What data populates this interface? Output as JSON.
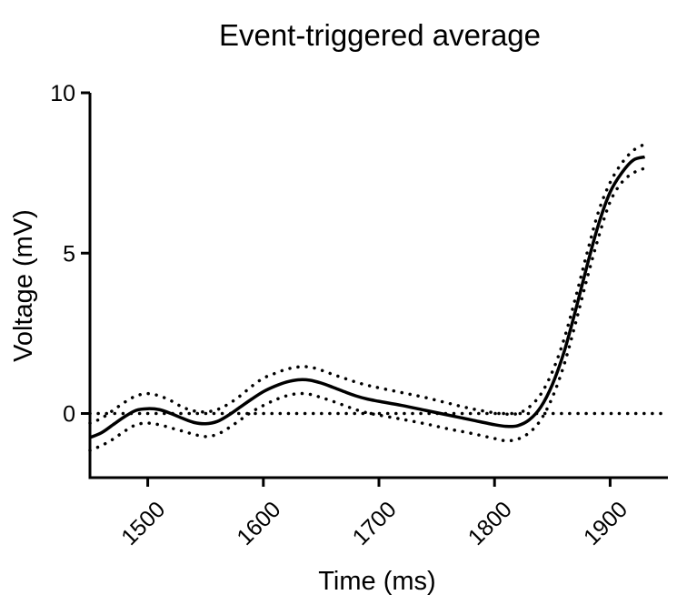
{
  "chart_data": {
    "type": "line",
    "title": "Event-triggered average",
    "xlabel": "Time (ms)",
    "ylabel": "Voltage (mV)",
    "xlim": [
      1450,
      1950
    ],
    "ylim": [
      -2,
      10
    ],
    "xticks": [
      1500,
      1600,
      1700,
      1800,
      1900
    ],
    "yticks": [
      0,
      5,
      10
    ],
    "xtick_labels": [
      "1500",
      "1600",
      "1700",
      "1800",
      "1900"
    ],
    "ytick_labels": [
      "0",
      "5",
      "10"
    ],
    "grid": false,
    "legend": "none",
    "series": [
      {
        "style": "solid",
        "x": [
          1450,
          1460,
          1470,
          1480,
          1490,
          1500,
          1510,
          1520,
          1530,
          1540,
          1550,
          1560,
          1570,
          1580,
          1590,
          1600,
          1610,
          1620,
          1630,
          1640,
          1650,
          1660,
          1670,
          1680,
          1690,
          1700,
          1720,
          1740,
          1760,
          1780,
          1800,
          1810,
          1820,
          1830,
          1840,
          1850,
          1860,
          1870,
          1880,
          1890,
          1900,
          1910,
          1920,
          1930
        ],
        "y": [
          -0.75,
          -0.6,
          -0.35,
          -0.1,
          0.1,
          0.15,
          0.12,
          0.0,
          -0.15,
          -0.28,
          -0.32,
          -0.25,
          -0.05,
          0.2,
          0.45,
          0.68,
          0.85,
          0.98,
          1.05,
          1.04,
          0.95,
          0.82,
          0.68,
          0.55,
          0.45,
          0.38,
          0.25,
          0.1,
          -0.05,
          -0.2,
          -0.35,
          -0.4,
          -0.38,
          -0.2,
          0.2,
          0.9,
          1.9,
          3.2,
          4.6,
          5.9,
          6.9,
          7.5,
          7.9,
          8.0
        ]
      },
      {
        "style": "dotted",
        "x": [
          1450,
          1460,
          1470,
          1480,
          1490,
          1500,
          1510,
          1520,
          1530,
          1540,
          1550,
          1560,
          1570,
          1580,
          1590,
          1600,
          1610,
          1620,
          1630,
          1640,
          1650,
          1660,
          1670,
          1680,
          1690,
          1700,
          1720,
          1740,
          1760,
          1780,
          1800,
          1810,
          1820,
          1830,
          1840,
          1850,
          1860,
          1870,
          1880,
          1890,
          1900,
          1910,
          1920,
          1930
        ],
        "y": [
          -0.3,
          -0.15,
          0.1,
          0.35,
          0.55,
          0.62,
          0.55,
          0.4,
          0.2,
          0.08,
          0.05,
          0.12,
          0.3,
          0.55,
          0.85,
          1.1,
          1.25,
          1.38,
          1.45,
          1.45,
          1.35,
          1.22,
          1.1,
          0.98,
          0.88,
          0.8,
          0.65,
          0.5,
          0.32,
          0.15,
          0.02,
          -0.02,
          0.0,
          0.2,
          0.6,
          1.3,
          2.3,
          3.6,
          5.0,
          6.3,
          7.2,
          7.8,
          8.2,
          8.4
        ]
      },
      {
        "style": "dotted",
        "x": [
          1450,
          1460,
          1470,
          1480,
          1490,
          1500,
          1510,
          1520,
          1530,
          1540,
          1550,
          1560,
          1570,
          1580,
          1590,
          1600,
          1610,
          1620,
          1630,
          1640,
          1650,
          1660,
          1670,
          1680,
          1690,
          1700,
          1720,
          1740,
          1760,
          1780,
          1800,
          1810,
          1820,
          1830,
          1840,
          1850,
          1860,
          1870,
          1880,
          1890,
          1900,
          1910,
          1920,
          1930
        ],
        "y": [
          -1.15,
          -1.0,
          -0.8,
          -0.55,
          -0.35,
          -0.3,
          -0.35,
          -0.45,
          -0.55,
          -0.65,
          -0.72,
          -0.65,
          -0.45,
          -0.2,
          0.05,
          0.25,
          0.42,
          0.55,
          0.62,
          0.6,
          0.5,
          0.38,
          0.25,
          0.12,
          0.02,
          -0.05,
          -0.18,
          -0.32,
          -0.48,
          -0.62,
          -0.78,
          -0.85,
          -0.8,
          -0.6,
          -0.2,
          0.5,
          1.5,
          2.8,
          4.2,
          5.5,
          6.6,
          7.2,
          7.5,
          7.65
        ]
      },
      {
        "style": "dotted",
        "x": [
          1450,
          1950
        ],
        "y": [
          0,
          0
        ]
      }
    ]
  }
}
